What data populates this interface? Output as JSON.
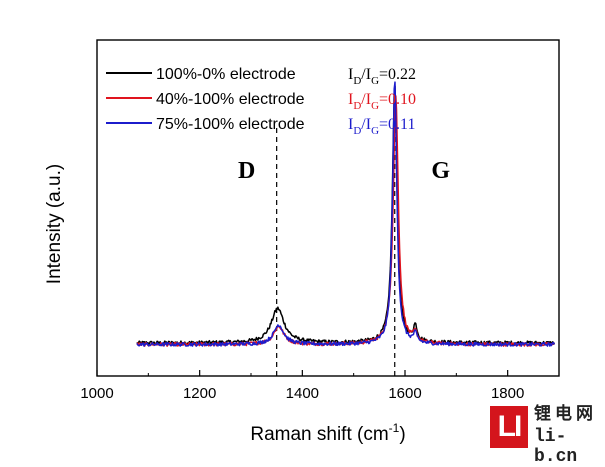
{
  "chart_data": {
    "type": "line",
    "title": "",
    "xlabel": "Raman shift (cm",
    "xlabel_sup": "-1",
    "xlabel_close": ")",
    "ylabel": "Intensity (a.u.)",
    "xlim": [
      1000,
      1900
    ],
    "ylim": [
      0,
      1.12
    ],
    "xticks": [
      1000,
      1200,
      1400,
      1600,
      1800
    ],
    "x_range": [
      1078,
      1892
    ],
    "legend_position": "top-left",
    "reference_lines": [
      {
        "x": 1350,
        "label": "D"
      },
      {
        "x": 1580,
        "label": "G"
      }
    ],
    "series": [
      {
        "name": "100%-0% electrode",
        "color": "#000000",
        "ratio_prefix": "I",
        "ratio_sub1": "D",
        "ratio_slash": "/I",
        "ratio_sub2": "G",
        "ratio_value": "=0.22",
        "baseline": 0.11,
        "peaks": [
          {
            "center": 1352,
            "height": 0.115,
            "width": 30
          },
          {
            "center": 1580,
            "height": 0.86,
            "width": 11
          },
          {
            "center": 1620,
            "height": 0.05,
            "width": 9
          }
        ]
      },
      {
        "name": "40%-100% electrode",
        "color": "#e0141e",
        "ratio_prefix": "I",
        "ratio_sub1": "D",
        "ratio_slash": "/I",
        "ratio_sub2": "G",
        "ratio_value": "=0.10",
        "baseline": 0.105,
        "peaks": [
          {
            "center": 1354,
            "height": 0.06,
            "width": 24
          },
          {
            "center": 1582,
            "height": 0.83,
            "width": 12
          },
          {
            "center": 1620,
            "height": 0.03,
            "width": 9
          }
        ]
      },
      {
        "name": "75%-100% electrode",
        "color": "#1c1ccc",
        "ratio_prefix": "I",
        "ratio_sub1": "D",
        "ratio_slash": "/I",
        "ratio_sub2": "G",
        "ratio_value": "=0.11",
        "baseline": 0.105,
        "peaks": [
          {
            "center": 1354,
            "height": 0.065,
            "width": 24
          },
          {
            "center": 1580,
            "height": 0.88,
            "width": 10
          },
          {
            "center": 1620,
            "height": 0.03,
            "width": 9
          }
        ]
      }
    ]
  },
  "watermark": {
    "logo": "LI",
    "text_cn": "锂电网",
    "text_url": "li-b.cn",
    "color": "#d4151c"
  }
}
